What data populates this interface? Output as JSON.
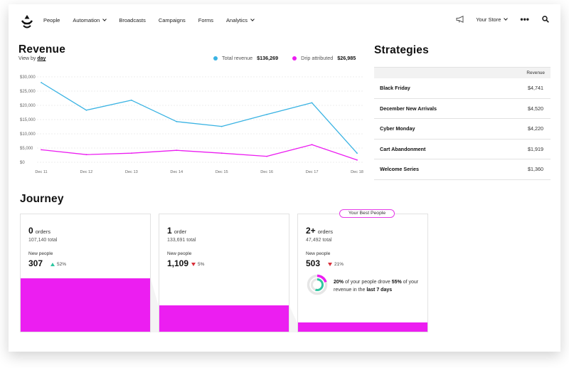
{
  "nav": {
    "items": [
      {
        "label": "People",
        "has_menu": false
      },
      {
        "label": "Automation",
        "has_menu": true
      },
      {
        "label": "Broadcasts",
        "has_menu": false
      },
      {
        "label": "Campaigns",
        "has_menu": false
      },
      {
        "label": "Forms",
        "has_menu": false
      },
      {
        "label": "Analytics",
        "has_menu": true
      }
    ],
    "store_label": "Your Store",
    "more_label": "•••",
    "icons": {
      "logo": "drip-logo-icon",
      "announce": "megaphone-icon",
      "search": "search-icon"
    }
  },
  "revenue": {
    "title": "Revenue",
    "view_by_prefix": "View by",
    "view_by_value": "day",
    "legend": [
      {
        "label": "Total revenue",
        "value": "$136,269",
        "color": "#3ab3e3"
      },
      {
        "label": "Drip attributed",
        "value": "$26,985",
        "color": "#ec1ef1"
      }
    ]
  },
  "chart_data": {
    "type": "line",
    "x": [
      "Dec 11",
      "Dec 12",
      "Dec 13",
      "Dec 14",
      "Dec 15",
      "Dec 16",
      "Dec 17",
      "Dec 18"
    ],
    "y_ticks": [
      "$0",
      "$5,000",
      "$10,000",
      "$15,000",
      "$20,000",
      "$25,000",
      "$30,000"
    ],
    "ylim": [
      0,
      30000
    ],
    "grid": true,
    "series": [
      {
        "name": "Total revenue",
        "color": "#3ab3e3",
        "values": [
          28000,
          18300,
          21800,
          14300,
          12600,
          16800,
          20900,
          3200
        ]
      },
      {
        "name": "Drip attributed",
        "color": "#ec1ef1",
        "values": [
          4400,
          2700,
          3200,
          4200,
          3200,
          2100,
          6200,
          800
        ]
      }
    ]
  },
  "strategies": {
    "title": "Strategies",
    "column_header": "Revenue",
    "rows": [
      {
        "name": "Black Friday",
        "revenue": "$4,741"
      },
      {
        "name": "December New Arrivals",
        "revenue": "$4,520"
      },
      {
        "name": "Cyber Monday",
        "revenue": "$4,220"
      },
      {
        "name": "Cart Abandonment",
        "revenue": "$1,919"
      },
      {
        "name": "Welcome Series",
        "revenue": "$1,360"
      }
    ]
  },
  "journey": {
    "title": "Journey",
    "badge": "Your Best People",
    "cards": [
      {
        "count": "0",
        "unit": "orders",
        "total": "107,140 total",
        "new_people_label": "New people",
        "new_people": "307",
        "change": "52%",
        "direction": "up",
        "bar_fraction": 0.45
      },
      {
        "count": "1",
        "unit": "order",
        "total": "133,691 total",
        "new_people_label": "New people",
        "new_people": "1,109",
        "change": "5%",
        "direction": "down",
        "bar_fraction": 0.22
      },
      {
        "count": "2+",
        "unit": "orders",
        "total": "47,492 total",
        "new_people_label": "New people",
        "new_people": "503",
        "change": "21%",
        "direction": "down",
        "bar_fraction": 0.08
      }
    ],
    "insight": {
      "pct_people": "20%",
      "text1": "of your people drove",
      "pct_revenue": "55%",
      "text2": "of your revenue in the",
      "period": "last 7 days",
      "donut_people_fraction": 0.2,
      "donut_revenue_fraction": 0.55
    }
  },
  "colors": {
    "blue": "#3ab3e3",
    "magenta": "#ec1ef1",
    "green": "#2fc6a0",
    "red": "#d8303a"
  }
}
